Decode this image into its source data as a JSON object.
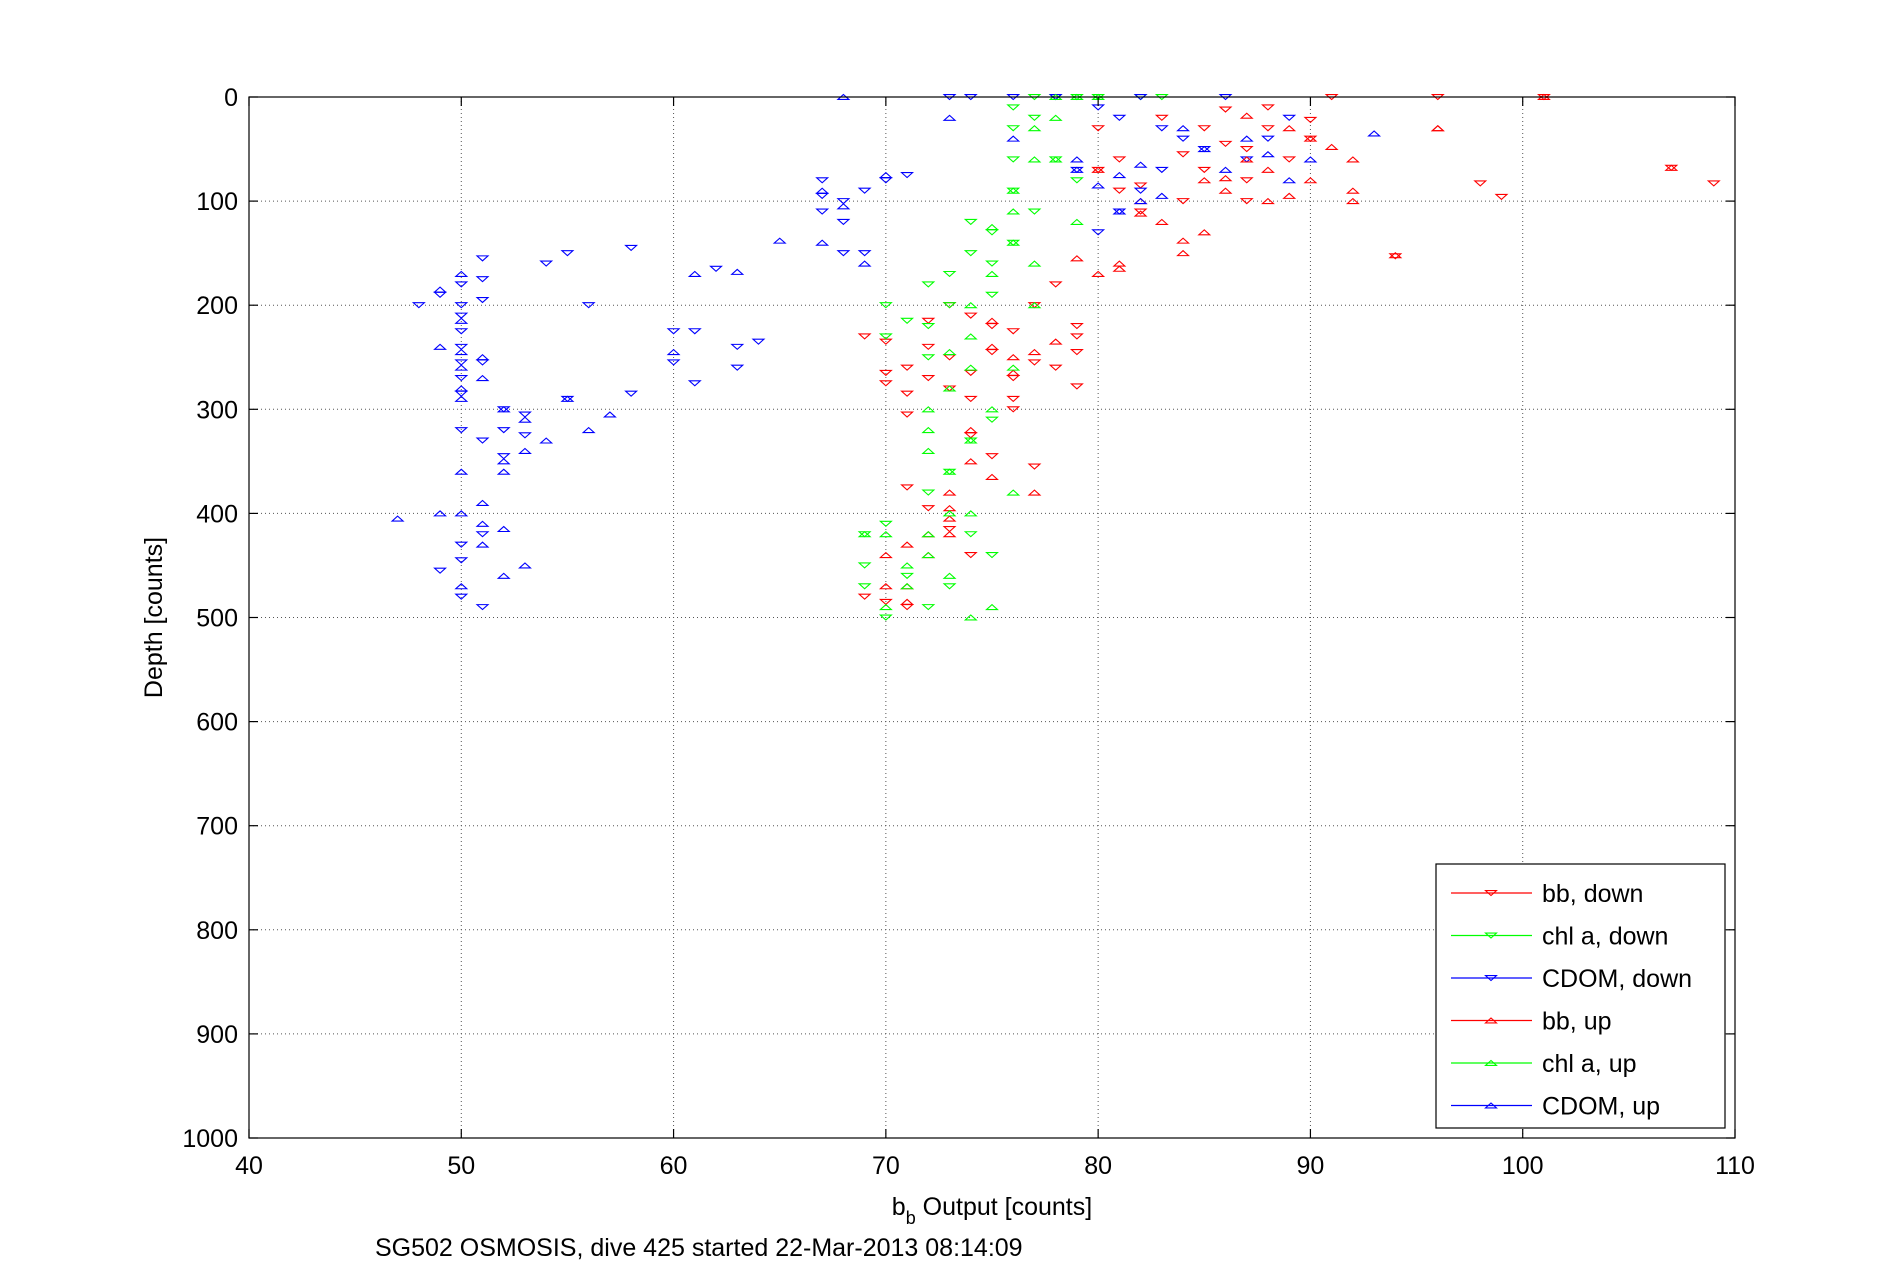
{
  "figure_caption": "SG502 OSMOSIS, dive 425 started 22-Mar-2013 08:14:09",
  "chart_data": {
    "type": "scatter",
    "title": "",
    "xlabel_main": "b",
    "xlabel_sub": "b",
    "xlabel_rest": " Output [counts]",
    "ylabel": "Depth [counts]",
    "xlim": [
      40,
      110
    ],
    "ylim": [
      0,
      1000
    ],
    "y_reversed": true,
    "x_ticks": [
      40,
      50,
      60,
      70,
      80,
      90,
      100,
      110
    ],
    "y_ticks": [
      0,
      100,
      200,
      300,
      400,
      500,
      600,
      700,
      800,
      900,
      1000
    ],
    "x_tick_labels": [
      "40",
      "50",
      "60",
      "70",
      "80",
      "90",
      "100",
      "110"
    ],
    "y_tick_labels": [
      "0",
      "100",
      "200",
      "300",
      "400",
      "500",
      "600",
      "700",
      "800",
      "900",
      "1000"
    ],
    "grid": true,
    "grid_style": "dotted",
    "legend_position": "bottom-right",
    "series": [
      {
        "name": "bb, down",
        "color": "#ff0000",
        "marker": "triangle-down",
        "x": [
          96,
          101,
          109,
          99,
          98,
          107,
          94,
          91,
          90,
          90,
          89,
          88,
          88,
          87,
          87,
          87,
          86,
          86,
          85,
          85,
          84,
          84,
          83,
          82,
          82,
          81,
          81,
          80,
          80,
          79,
          79,
          79,
          79,
          78,
          78,
          77,
          77,
          76,
          76,
          76,
          75,
          75,
          74,
          74,
          74,
          73,
          73,
          73,
          72,
          72,
          72,
          71,
          71,
          71,
          70,
          70,
          70,
          69,
          69,
          74,
          75,
          76,
          77,
          71,
          72,
          73,
          74,
          70,
          71
        ],
        "y": [
          0,
          0,
          83,
          96,
          83,
          68,
          153,
          0,
          22,
          40,
          60,
          10,
          30,
          50,
          80,
          100,
          12,
          45,
          30,
          70,
          100,
          55,
          20,
          85,
          110,
          60,
          90,
          30,
          70,
          220,
          245,
          230,
          278,
          180,
          260,
          200,
          255,
          225,
          270,
          290,
          220,
          245,
          210,
          265,
          290,
          200,
          250,
          280,
          215,
          240,
          270,
          260,
          285,
          305,
          235,
          275,
          265,
          230,
          480,
          325,
          345,
          300,
          355,
          375,
          395,
          415,
          440,
          485,
          490
        ]
      },
      {
        "name": "chl a, down",
        "color": "#00ff00",
        "marker": "triangle-down",
        "x": [
          83,
          82,
          80,
          79,
          78,
          77,
          77,
          76,
          76,
          76,
          75,
          75,
          75,
          74,
          74,
          73,
          73,
          72,
          72,
          72,
          71,
          70,
          70,
          69,
          69,
          76,
          77,
          78,
          79,
          76,
          75,
          74,
          73,
          72,
          74,
          75,
          73,
          72,
          70,
          70,
          71,
          69
        ],
        "y": [
          0,
          0,
          0,
          0,
          0,
          0,
          20,
          10,
          30,
          60,
          130,
          160,
          190,
          120,
          150,
          170,
          200,
          180,
          220,
          250,
          215,
          200,
          230,
          450,
          470,
          90,
          110,
          60,
          80,
          140,
          310,
          330,
          360,
          380,
          420,
          440,
          470,
          490,
          410,
          500,
          460,
          420
        ]
      },
      {
        "name": "CDOM, down",
        "color": "#0000ff",
        "marker": "triangle-down",
        "x": [
          73,
          74,
          76,
          78,
          80,
          81,
          82,
          83,
          84,
          85,
          86,
          87,
          88,
          89,
          83,
          82,
          81,
          80,
          79,
          68,
          68,
          67,
          67,
          67,
          68,
          69,
          69,
          70,
          71,
          48,
          49,
          50,
          50,
          50,
          50,
          50,
          50,
          50,
          50,
          51,
          51,
          51,
          51,
          52,
          52,
          52,
          53,
          53,
          54,
          55,
          55,
          56,
          58,
          60,
          60,
          61,
          61,
          62,
          63,
          63,
          64,
          58,
          50,
          51,
          50,
          51,
          49,
          50,
          51,
          50
        ],
        "y": [
          0,
          0,
          0,
          0,
          10,
          20,
          0,
          30,
          40,
          50,
          0,
          60,
          40,
          20,
          70,
          90,
          110,
          130,
          70,
          100,
          120,
          80,
          95,
          110,
          150,
          90,
          150,
          80,
          75,
          200,
          190,
          180,
          200,
          210,
          225,
          240,
          255,
          270,
          285,
          155,
          175,
          195,
          255,
          300,
          320,
          345,
          305,
          325,
          160,
          150,
          290,
          200,
          145,
          225,
          255,
          225,
          275,
          165,
          240,
          260,
          235,
          285,
          480,
          490,
          320,
          330,
          455,
          430,
          420,
          445
        ]
      },
      {
        "name": "bb, up",
        "color": "#ff0000",
        "marker": "triangle-up",
        "x": [
          101,
          96,
          107,
          96,
          94,
          92,
          92,
          92,
          91,
          90,
          90,
          89,
          89,
          88,
          88,
          87,
          87,
          86,
          86,
          85,
          85,
          84,
          84,
          83,
          82,
          82,
          81,
          81,
          80,
          80,
          79,
          78,
          77,
          76,
          76,
          75,
          75,
          74,
          74,
          73,
          73,
          73,
          72,
          72,
          71,
          71,
          71,
          70,
          70,
          77,
          75,
          73
        ],
        "y": [
          0,
          30,
          68,
          30,
          152,
          60,
          90,
          100,
          48,
          40,
          80,
          95,
          30,
          70,
          100,
          18,
          60,
          78,
          90,
          130,
          80,
          138,
          150,
          120,
          100,
          112,
          165,
          160,
          170,
          70,
          155,
          235,
          245,
          250,
          265,
          215,
          240,
          320,
          350,
          380,
          395,
          420,
          420,
          440,
          430,
          470,
          485,
          440,
          470,
          380,
          365,
          405
        ]
      },
      {
        "name": "chl a, up",
        "color": "#00ff00",
        "marker": "triangle-up",
        "x": [
          80,
          79,
          78,
          78,
          77,
          77,
          76,
          76,
          75,
          75,
          74,
          74,
          74,
          73,
          73,
          72,
          72,
          72,
          71,
          71,
          70,
          70,
          69,
          76,
          77,
          78,
          79,
          77,
          76,
          75,
          74,
          73,
          73,
          72,
          72,
          74,
          75,
          76,
          74,
          73
        ],
        "y": [
          0,
          0,
          0,
          20,
          30,
          60,
          90,
          110,
          125,
          170,
          200,
          230,
          260,
          245,
          280,
          300,
          320,
          340,
          450,
          470,
          420,
          490,
          420,
          140,
          160,
          60,
          120,
          200,
          260,
          300,
          330,
          360,
          400,
          420,
          440,
          400,
          490,
          380,
          500,
          460
        ]
      },
      {
        "name": "CDOM, up",
        "color": "#0000ff",
        "marker": "triangle-up",
        "x": [
          68,
          73,
          76,
          79,
          81,
          82,
          83,
          84,
          85,
          86,
          87,
          88,
          89,
          90,
          93,
          82,
          81,
          80,
          79,
          67,
          67,
          68,
          69,
          70,
          65,
          63,
          61,
          60,
          50,
          49,
          49,
          50,
          50,
          50,
          50,
          50,
          51,
          51,
          51,
          51,
          52,
          52,
          52,
          53,
          53,
          54,
          55,
          56,
          57,
          47,
          49,
          50,
          50,
          50,
          51,
          52,
          52,
          53
        ],
        "y": [
          0,
          20,
          40,
          60,
          75,
          65,
          95,
          30,
          50,
          70,
          40,
          55,
          80,
          60,
          35,
          100,
          110,
          85,
          70,
          90,
          140,
          105,
          160,
          75,
          138,
          168,
          170,
          245,
          170,
          185,
          240,
          215,
          245,
          260,
          280,
          290,
          250,
          270,
          390,
          410,
          300,
          350,
          360,
          310,
          340,
          330,
          290,
          320,
          305,
          405,
          400,
          360,
          400,
          470,
          430,
          415,
          460,
          450
        ]
      }
    ]
  }
}
